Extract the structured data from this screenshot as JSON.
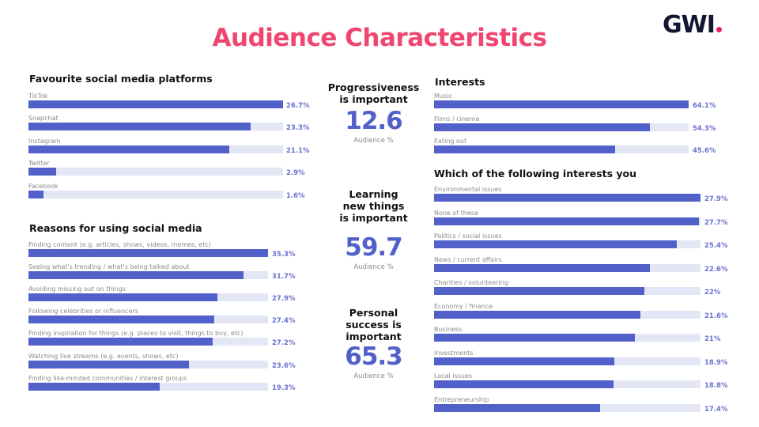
{
  "header": {
    "title": "Audience Characteristics",
    "logo": "GWI",
    "logo_dot_color": "#e91e63",
    "title_color": "#f0456f"
  },
  "colors": {
    "bar_fill": "#5260c9",
    "bar_track": "#e2e6f5",
    "value_text": "#6a72cf"
  },
  "platforms": {
    "title": "Favourite social media platforms",
    "max": 26.7,
    "items": [
      {
        "label": "TikTok",
        "value": 26.7,
        "display": "26.7%"
      },
      {
        "label": "Snapchat",
        "value": 23.3,
        "display": "23.3%"
      },
      {
        "label": "Instagram",
        "value": 21.1,
        "display": "21.1%"
      },
      {
        "label": "Twitter",
        "value": 2.9,
        "display": "2.9%"
      },
      {
        "label": "Facebook",
        "value": 1.6,
        "display": "1.6%"
      }
    ]
  },
  "reasons": {
    "title": "Reasons for using social media",
    "max": 35.3,
    "items": [
      {
        "label": "Finding content (e.g. articles, shows, videos, memes, etc)",
        "value": 35.3,
        "display": "35.3%"
      },
      {
        "label": "Seeing what's trending / what's being talked about",
        "value": 31.7,
        "display": "31.7%"
      },
      {
        "label": "Avoiding missing out on things",
        "value": 27.9,
        "display": "27.9%"
      },
      {
        "label": "Following celebrities or influencers",
        "value": 27.4,
        "display": "27.4%"
      },
      {
        "label": "Finding inspiration for things (e.g. places to visit, things to buy, etc)",
        "value": 27.2,
        "display": "27.2%"
      },
      {
        "label": "Watching live streams (e.g. events, shows, etc)",
        "value": 23.6,
        "display": "23.6%"
      },
      {
        "label": "Finding like-minded communities / interest groups",
        "value": 19.3,
        "display": "19.3%"
      }
    ]
  },
  "stats": [
    {
      "title": "Progressiveness is important",
      "value": "12.6",
      "sub": "Audience %"
    },
    {
      "title": "Learning new things is important",
      "value": "59.7",
      "sub": "Audience %"
    },
    {
      "title": "Personal success is important",
      "value": "65.3",
      "sub": "Audience %"
    }
  ],
  "interests": {
    "title": "Interests",
    "max": 64.1,
    "items": [
      {
        "label": "Music",
        "value": 64.1,
        "display": "64.1%"
      },
      {
        "label": "Films / cinema",
        "value": 54.3,
        "display": "54.3%"
      },
      {
        "label": "Eating out",
        "value": 45.6,
        "display": "45.6%"
      }
    ]
  },
  "which_interests": {
    "title": "Which of the following interests you",
    "max": 27.9,
    "items": [
      {
        "label": "Environmental issues",
        "value": 27.9,
        "display": "27.9%"
      },
      {
        "label": "None of these",
        "value": 27.7,
        "display": "27.7%"
      },
      {
        "label": "Politics / social issues",
        "value": 25.4,
        "display": "25.4%"
      },
      {
        "label": "News / current affairs",
        "value": 22.6,
        "display": "22.6%"
      },
      {
        "label": "Charities / volunteering",
        "value": 22,
        "display": "22%"
      },
      {
        "label": "Economy / finance",
        "value": 21.6,
        "display": "21.6%"
      },
      {
        "label": "Business",
        "value": 21,
        "display": "21%"
      },
      {
        "label": "Investments",
        "value": 18.9,
        "display": "18.9%"
      },
      {
        "label": "Local issues",
        "value": 18.8,
        "display": "18.8%"
      },
      {
        "label": "Entrepreneurship",
        "value": 17.4,
        "display": "17.4%"
      }
    ]
  }
}
